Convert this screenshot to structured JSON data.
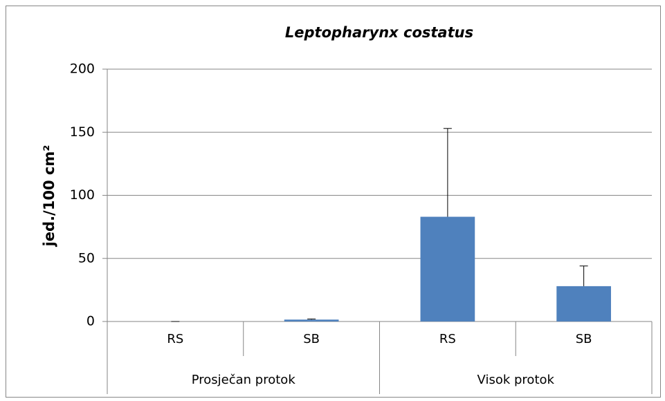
{
  "chart_data": {
    "type": "bar",
    "title": "Leptopharynx costatus",
    "y_label": "jed./100 cm²",
    "categories": [
      "RS",
      "SB",
      "RS",
      "SB"
    ],
    "group_labels": [
      "Prosječan protok",
      "Visok protok"
    ],
    "values": [
      0,
      1.5,
      83,
      28
    ],
    "errors": [
      0,
      0.5,
      70,
      16
    ],
    "color": "#4f81bd",
    "ylim": [
      0,
      200
    ],
    "yticks": [
      0,
      50,
      100,
      150,
      200
    ],
    "grid": true
  }
}
